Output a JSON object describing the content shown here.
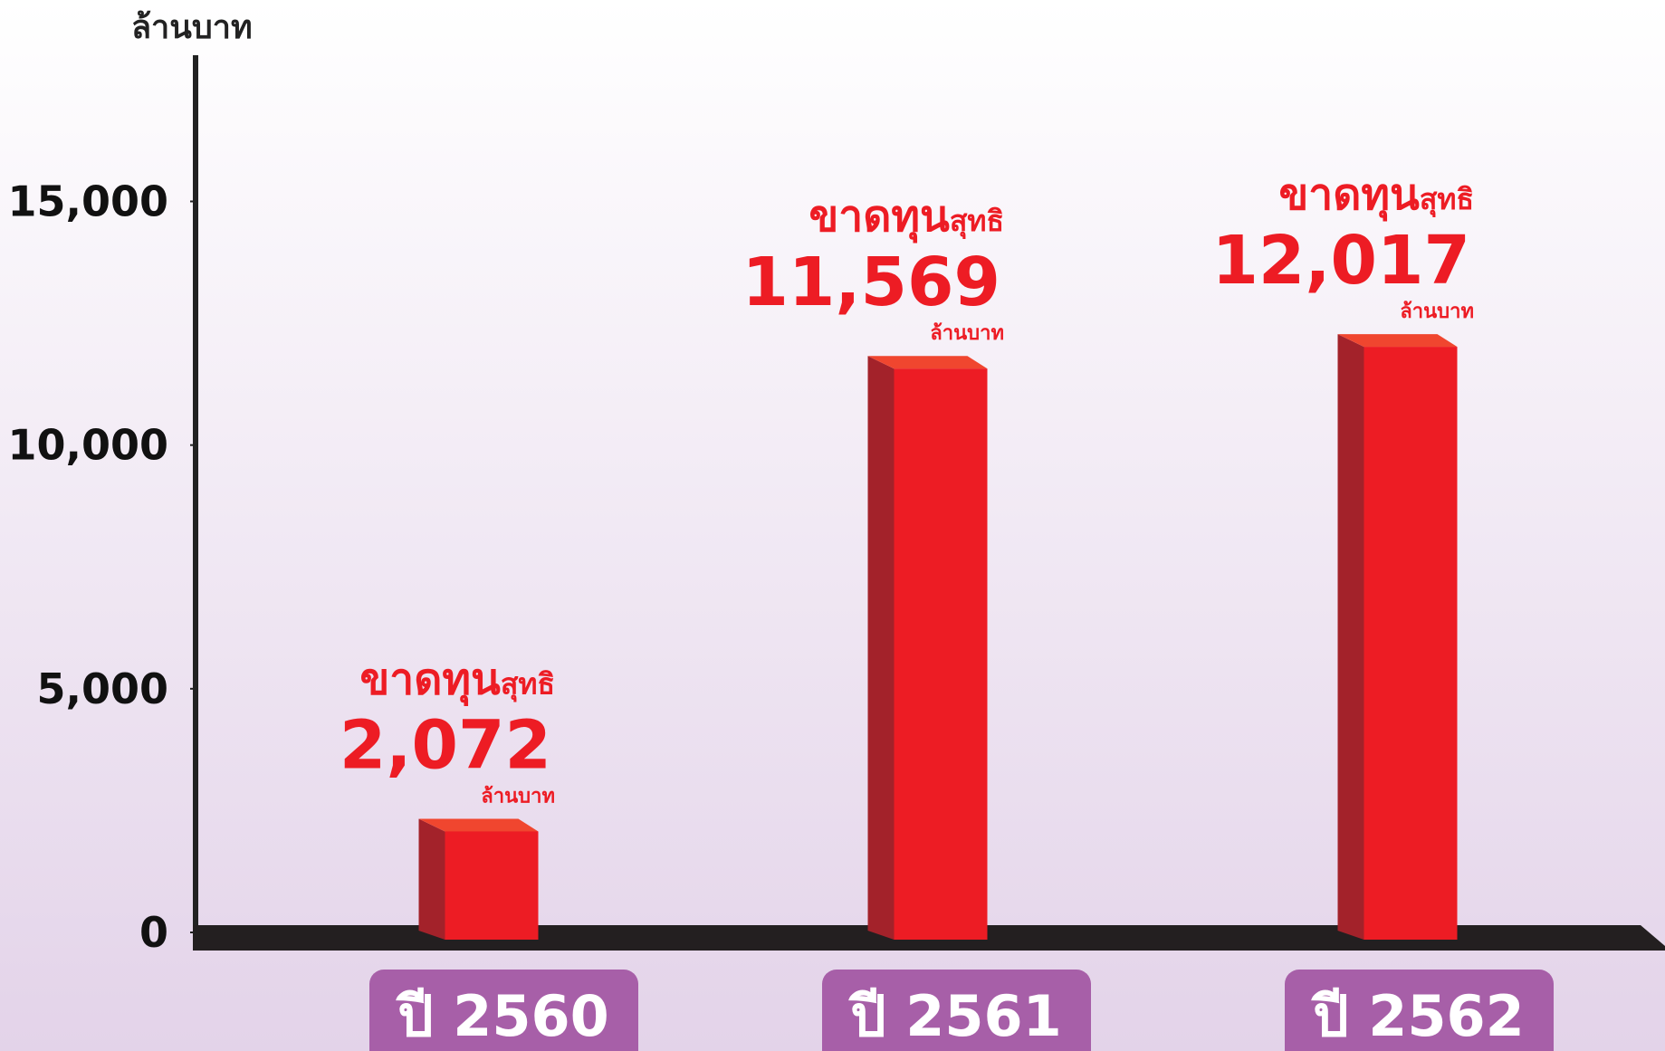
{
  "chart_data": {
    "type": "bar",
    "y_label": "ล้านบาท",
    "categories": [
      "ปี 2560",
      "ปี 2561",
      "ปี 2562"
    ],
    "values": [
      2072,
      11569,
      12017
    ],
    "value_labels": [
      "2,072",
      "11,569",
      "12,017"
    ],
    "label_prefix": "ขาดทุน",
    "label_prefix_small": "สุทธิ",
    "color": "#ed1c24",
    "ylim": [
      0,
      18000
    ],
    "yticks": [
      0,
      {
        "value": 5000,
        "label": "5,000"
      },
      {
        "value": 10000,
        "label": "10,000"
      },
      {
        "value": 15000,
        "label": "15,000"
      }
    ]
  }
}
